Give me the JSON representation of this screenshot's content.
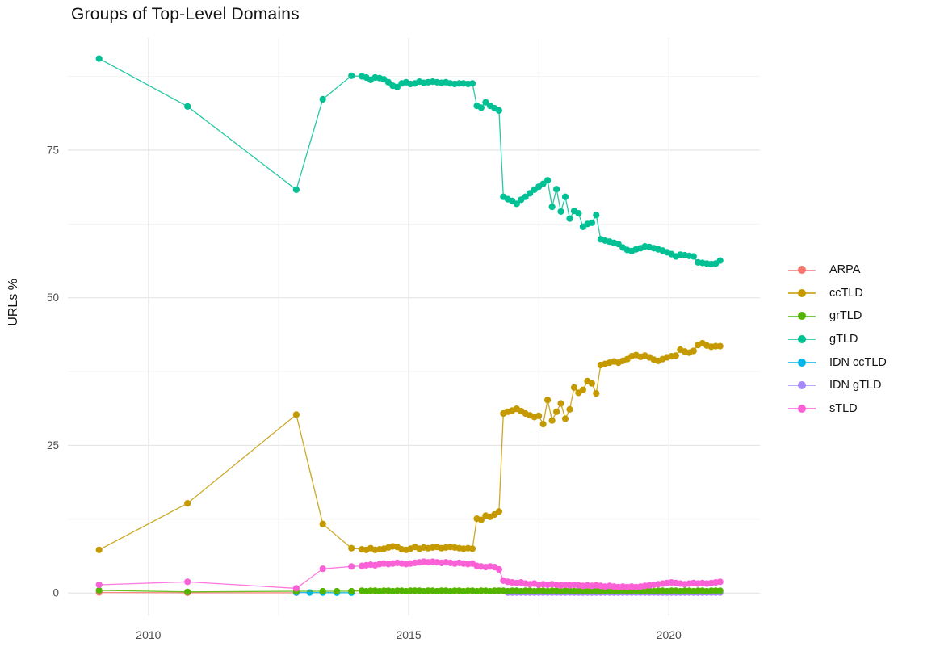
{
  "chart_data": {
    "type": "line",
    "title": "Groups of Top-Level Domains",
    "xlabel": "",
    "ylabel": "URLs %",
    "x_ticks": [
      2010,
      2015,
      2020
    ],
    "x_minor_gridlines": [
      2012.5,
      2017.5
    ],
    "y_ticks": [
      0,
      25,
      50,
      75
    ],
    "y_minor_gridlines": [
      12.5,
      37.5,
      62.5,
      87.5
    ],
    "xlim": [
      2008.45,
      2021.75
    ],
    "ylim": [
      -3.8,
      94
    ],
    "grid": true,
    "legend_position": "right",
    "draw_order": [
      "ARPA",
      "IDN ccTLD",
      "IDN gTLD",
      "grTLD",
      "ccTLD",
      "gTLD",
      "sTLD"
    ],
    "series": [
      {
        "name": "ARPA",
        "color": "#F8766D",
        "early": [
          [
            2009.05,
            0.1
          ],
          [
            2010.75,
            0.05
          ],
          [
            2012.84,
            0.05
          ]
        ]
      },
      {
        "name": "ccTLD",
        "color": "#C49A00",
        "early": [
          [
            2009.05,
            7.3
          ],
          [
            2010.75,
            15.2
          ],
          [
            2012.84,
            30.2
          ],
          [
            2013.35,
            11.7
          ],
          [
            2013.9,
            7.6
          ]
        ],
        "dense": {
          "start": 2014.1,
          "step": 0.085,
          "values": [
            7.4,
            7.3,
            7.6,
            7.3,
            7.4,
            7.5,
            7.7,
            7.9,
            7.8,
            7.4,
            7.3,
            7.5,
            7.8,
            7.5,
            7.7,
            7.6,
            7.7,
            7.8,
            7.6,
            7.7,
            7.8,
            7.7,
            7.6,
            7.5,
            7.6,
            7.5,
            12.6,
            12.4,
            13.1,
            12.9,
            13.3,
            13.8,
            30.4,
            30.7,
            30.9,
            31.2,
            30.8,
            30.4,
            30.1,
            29.8,
            30.0,
            28.6,
            32.7,
            29.2,
            30.7,
            32.1,
            29.5,
            31.1,
            34.8,
            33.9,
            34.4,
            35.9,
            35.5,
            33.8,
            38.6,
            38.8,
            39.0,
            39.2,
            39.0,
            39.3,
            39.6,
            40.1,
            40.3,
            40.0,
            40.2,
            39.9,
            39.5,
            39.3,
            39.6,
            39.9,
            40.1,
            40.2,
            41.2,
            40.9,
            40.7,
            41.0,
            42.0,
            42.3,
            41.9,
            41.7,
            41.8,
            41.8
          ]
        }
      },
      {
        "name": "grTLD",
        "color": "#53B400",
        "early": [
          [
            2009.05,
            0.45
          ],
          [
            2010.75,
            0.2
          ],
          [
            2012.84,
            0.3
          ],
          [
            2013.35,
            0.3
          ],
          [
            2013.62,
            0.3
          ],
          [
            2013.9,
            0.3
          ]
        ],
        "dense": {
          "start": 2014.1,
          "step": 0.085,
          "values": [
            0.4,
            0.3,
            0.4,
            0.4,
            0.3,
            0.4,
            0.4,
            0.3,
            0.4,
            0.4,
            0.3,
            0.4,
            0.4,
            0.4,
            0.3,
            0.4,
            0.4,
            0.3,
            0.4,
            0.4,
            0.3,
            0.4,
            0.4,
            0.3,
            0.4,
            0.4,
            0.3,
            0.4,
            0.4,
            0.3,
            0.4,
            0.4,
            0.4,
            0.3,
            0.4,
            0.4,
            0.3,
            0.4,
            0.4,
            0.3,
            0.4,
            0.4,
            0.3,
            0.4,
            0.4,
            0.3,
            0.4,
            0.4,
            0.3,
            0.4,
            0.4,
            0.3,
            0.4,
            0.4,
            0.3,
            0.4,
            0.4,
            0.3,
            0.4,
            0.4,
            0.3,
            0.4,
            0.4,
            0.3,
            0.4,
            0.4,
            0.3,
            0.4,
            0.4,
            0.3,
            0.4,
            0.4,
            0.3,
            0.4,
            0.4,
            0.3,
            0.4,
            0.4,
            0.3,
            0.4,
            0.4,
            0.4
          ]
        }
      },
      {
        "name": "gTLD",
        "color": "#00C094",
        "early": [
          [
            2009.05,
            90.5
          ],
          [
            2010.75,
            82.4
          ],
          [
            2012.84,
            68.3
          ],
          [
            2013.35,
            83.6
          ],
          [
            2013.9,
            87.6
          ]
        ],
        "dense": {
          "start": 2014.1,
          "step": 0.085,
          "values": [
            87.5,
            87.3,
            86.9,
            87.3,
            87.2,
            87.0,
            86.5,
            85.9,
            85.7,
            86.3,
            86.5,
            86.2,
            86.3,
            86.6,
            86.4,
            86.5,
            86.6,
            86.5,
            86.4,
            86.5,
            86.3,
            86.2,
            86.3,
            86.3,
            86.2,
            86.3,
            82.5,
            82.2,
            83.1,
            82.5,
            82.1,
            81.7,
            67.1,
            66.7,
            66.4,
            65.9,
            66.6,
            67.1,
            67.7,
            68.3,
            68.8,
            69.3,
            69.9,
            65.4,
            68.4,
            64.6,
            67.1,
            63.4,
            64.7,
            64.3,
            62.0,
            62.5,
            62.7,
            64.0,
            59.9,
            59.7,
            59.5,
            59.3,
            59.1,
            58.5,
            58.1,
            57.9,
            58.2,
            58.4,
            58.7,
            58.6,
            58.4,
            58.2,
            58.0,
            57.7,
            57.4,
            57.0,
            57.3,
            57.2,
            57.1,
            57.0,
            56.0,
            55.9,
            55.8,
            55.7,
            55.8,
            56.3
          ]
        }
      },
      {
        "name": "IDN ccTLD",
        "color": "#00B6EB",
        "early": [
          [
            2012.84,
            0.1
          ],
          [
            2013.1,
            0.08
          ],
          [
            2013.35,
            0.07
          ],
          [
            2013.62,
            0.06
          ],
          [
            2013.9,
            0.06
          ]
        ]
      },
      {
        "name": "IDN gTLD",
        "color": "#A58AFF",
        "dense": {
          "start": 2016.905,
          "step": 0.085,
          "values": [
            0.07,
            0.07,
            0.07,
            0.07,
            0.07,
            0.07,
            0.07,
            0.07,
            0.07,
            0.07,
            0.07,
            0.07,
            0.07,
            0.07,
            0.07,
            0.07,
            0.07,
            0.07,
            0.07,
            0.07,
            0.07,
            0.07,
            0.07,
            0.07,
            0.07,
            0.07,
            0.07,
            0.07,
            0.07,
            0.07,
            0.07,
            0.07,
            0.07,
            0.07,
            0.07,
            0.07,
            0.07,
            0.07,
            0.07,
            0.07,
            0.07,
            0.07,
            0.07,
            0.07,
            0.07,
            0.07,
            0.07,
            0.07,
            0.07
          ]
        }
      },
      {
        "name": "sTLD",
        "color": "#FB61D7",
        "early": [
          [
            2009.05,
            1.4
          ],
          [
            2010.75,
            1.9
          ],
          [
            2012.84,
            0.8
          ],
          [
            2013.35,
            4.1
          ],
          [
            2013.9,
            4.5
          ]
        ],
        "dense": {
          "start": 2014.1,
          "step": 0.085,
          "values": [
            4.6,
            4.7,
            4.8,
            4.7,
            4.9,
            5.0,
            4.9,
            5.0,
            5.1,
            5.0,
            4.9,
            5.0,
            5.1,
            5.2,
            5.3,
            5.2,
            5.3,
            5.2,
            5.1,
            5.2,
            5.1,
            5.0,
            5.1,
            5.0,
            4.9,
            5.0,
            4.6,
            4.5,
            4.4,
            4.5,
            4.4,
            4.0,
            2.1,
            1.9,
            1.8,
            1.7,
            1.8,
            1.6,
            1.5,
            1.6,
            1.4,
            1.5,
            1.4,
            1.5,
            1.4,
            1.3,
            1.4,
            1.3,
            1.4,
            1.3,
            1.2,
            1.3,
            1.2,
            1.3,
            1.2,
            1.1,
            1.2,
            1.1,
            1.0,
            1.1,
            1.0,
            1.1,
            1.0,
            1.1,
            1.2,
            1.3,
            1.4,
            1.5,
            1.6,
            1.7,
            1.8,
            1.7,
            1.6,
            1.5,
            1.6,
            1.7,
            1.6,
            1.7,
            1.6,
            1.7,
            1.8,
            1.9
          ]
        }
      }
    ]
  },
  "style": {
    "grid_major_color": "#e6e6e6",
    "grid_minor_color": "#f1f1f1",
    "tick_label_color": "#4d4d4d",
    "text_color": "#141414",
    "background": "#ffffff"
  }
}
